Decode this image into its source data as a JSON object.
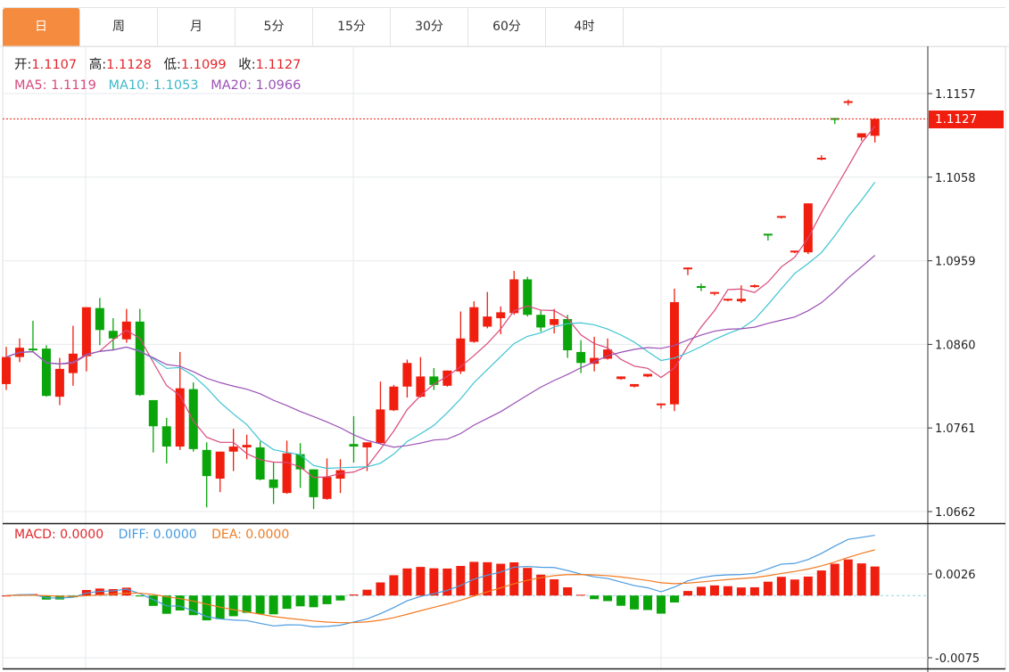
{
  "tabs": [
    {
      "label": "日",
      "active": true
    },
    {
      "label": "周"
    },
    {
      "label": "月"
    },
    {
      "label": "5分"
    },
    {
      "label": "15分"
    },
    {
      "label": "30分"
    },
    {
      "label": "60分"
    },
    {
      "label": "4时"
    }
  ],
  "legend": {
    "open_label": "开:",
    "open": "1.1107",
    "high_label": "高:",
    "high": "1.1128",
    "low_label": "低:",
    "low": "1.1099",
    "close_label": "收:",
    "close": "1.1127",
    "ma5": "MA5: 1.1119",
    "ma10": "MA10: 1.1053",
    "ma20": "MA20: 1.0966"
  },
  "macd_legend": {
    "macd": "MACD: 0.0000",
    "diff": "DIFF: 0.0000",
    "dea": "DEA: 0.0000"
  },
  "current_price": "1.1127",
  "colors": {
    "up": "#f01e0e",
    "down": "#0aa50a",
    "ma5": "#d8497c",
    "ma10": "#3fc3d2",
    "ma20": "#9b50b5",
    "diff": "#4b9be0",
    "dea": "#f07b22",
    "tab_active": "#f48b3e"
  },
  "chart_data": {
    "type": "candlestick",
    "price_axis": {
      "ticks": [
        "1.1157",
        "1.1058",
        "1.0959",
        "1.0860",
        "1.0761",
        "1.0662"
      ],
      "range": [
        1.0662,
        1.1157
      ]
    },
    "macd_axis": {
      "ticks": [
        "0.0026",
        "-0.0075"
      ],
      "range": [
        -0.0075,
        0.0026
      ]
    },
    "ohlc": [
      [
        1.0813,
        1.0857,
        1.0806,
        1.0845
      ],
      [
        1.0845,
        1.0867,
        1.0839,
        1.0856
      ],
      [
        1.0855,
        1.0888,
        1.0852,
        1.0853
      ],
      [
        1.0855,
        1.0859,
        1.0798,
        1.0799
      ],
      [
        1.0798,
        1.0844,
        1.0788,
        1.0831
      ],
      [
        1.0826,
        1.0882,
        1.0811,
        1.0849
      ],
      [
        1.0846,
        1.0904,
        1.0828,
        1.0904
      ],
      [
        1.0903,
        1.0915,
        1.0859,
        1.0877
      ],
      [
        1.0876,
        1.0891,
        1.0853,
        1.0867
      ],
      [
        1.0866,
        1.0902,
        1.0862,
        1.0887
      ],
      [
        1.0887,
        1.0902,
        1.0799,
        1.08
      ],
      [
        1.0794,
        1.0794,
        1.0732,
        1.0763
      ],
      [
        1.0763,
        1.0773,
        1.0719,
        1.0739
      ],
      [
        1.0739,
        1.0851,
        1.0735,
        1.0808
      ],
      [
        1.0807,
        1.0815,
        1.0733,
        1.0736
      ],
      [
        1.0735,
        1.0744,
        1.0667,
        1.0704
      ],
      [
        1.0701,
        1.0733,
        1.0685,
        1.0733
      ],
      [
        1.0733,
        1.076,
        1.071,
        1.0739
      ],
      [
        1.0738,
        1.0753,
        1.0724,
        1.0741
      ],
      [
        1.0738,
        1.0745,
        1.0699,
        1.07
      ],
      [
        1.07,
        1.072,
        1.0671,
        1.069
      ],
      [
        1.0684,
        1.0746,
        1.0683,
        1.0731
      ],
      [
        1.073,
        1.0743,
        1.069,
        1.0712
      ],
      [
        1.0712,
        1.0712,
        1.0665,
        1.0679
      ],
      [
        1.0677,
        1.0725,
        1.0676,
        1.0703
      ],
      [
        1.0701,
        1.0724,
        1.0684,
        1.0711
      ],
      [
        1.0742,
        1.0775,
        1.072,
        1.0739
      ],
      [
        1.0738,
        1.0744,
        1.071,
        1.0744
      ],
      [
        1.0743,
        1.0816,
        1.0742,
        1.0783
      ],
      [
        1.0782,
        1.0812,
        1.0781,
        1.081
      ],
      [
        1.081,
        1.0842,
        1.0797,
        1.0838
      ],
      [
        1.0798,
        1.0845,
        1.0797,
        1.0822
      ],
      [
        1.0822,
        1.0832,
        1.0806,
        1.0812
      ],
      [
        1.0811,
        1.0829,
        1.081,
        1.0829
      ],
      [
        1.0828,
        1.0899,
        1.0825,
        1.0867
      ],
      [
        1.0863,
        1.0911,
        1.0862,
        1.0904
      ],
      [
        1.0881,
        1.0922,
        1.0879,
        1.0893
      ],
      [
        1.0891,
        1.0905,
        1.0872,
        1.0898
      ],
      [
        1.0897,
        1.0947,
        1.0895,
        1.0937
      ],
      [
        1.0937,
        1.094,
        1.0893,
        1.0895
      ],
      [
        1.0895,
        1.09,
        1.0875,
        1.088
      ],
      [
        1.0883,
        1.0902,
        1.0873,
        1.089
      ],
      [
        1.089,
        1.0895,
        1.0844,
        1.0853
      ],
      [
        1.0851,
        1.0865,
        1.0826,
        1.0838
      ],
      [
        1.0837,
        1.0869,
        1.0828,
        1.0844
      ],
      [
        1.0843,
        1.0867,
        1.0842,
        1.0854
      ],
      [
        1.0819,
        1.0822,
        1.0818,
        1.0822
      ],
      [
        1.081,
        1.0813,
        1.0809,
        1.0813
      ],
      [
        1.0822,
        1.0825,
        1.0821,
        1.0825
      ],
      [
        1.0789,
        1.079,
        1.0784,
        1.079
      ],
      [
        1.0789,
        1.0926,
        1.0781,
        1.091
      ],
      [
        1.0949,
        1.0951,
        1.0942,
        1.0951
      ],
      [
        1.0929,
        1.0932,
        1.0923,
        1.0927
      ],
      [
        1.092,
        1.0922,
        1.0918,
        1.0922
      ],
      [
        1.0912,
        1.0914,
        1.0911,
        1.0914
      ],
      [
        1.0911,
        1.093,
        1.0909,
        1.0914
      ],
      [
        1.0928,
        1.0931,
        1.0927,
        1.093
      ],
      [
        1.0991,
        1.0991,
        1.0983,
        1.0989
      ],
      [
        1.101,
        1.1012,
        1.1009,
        1.1012
      ],
      [
        1.0969,
        1.0971,
        1.0968,
        1.0971
      ],
      [
        1.0969,
        1.1027,
        1.0967,
        1.1027
      ],
      [
        1.1079,
        1.1084,
        1.1078,
        1.1081
      ],
      [
        1.1128,
        1.1128,
        1.1121,
        1.1126
      ],
      [
        1.1146,
        1.115,
        1.1143,
        1.1148
      ],
      [
        1.1105,
        1.111,
        1.1101,
        1.111
      ],
      [
        1.1107,
        1.1128,
        1.1099,
        1.1127
      ]
    ],
    "ohlc_order": [
      "open",
      "high",
      "low",
      "close"
    ],
    "indicators": [
      "MA5",
      "MA10",
      "MA20",
      "MACD",
      "DIFF",
      "DEA"
    ]
  }
}
